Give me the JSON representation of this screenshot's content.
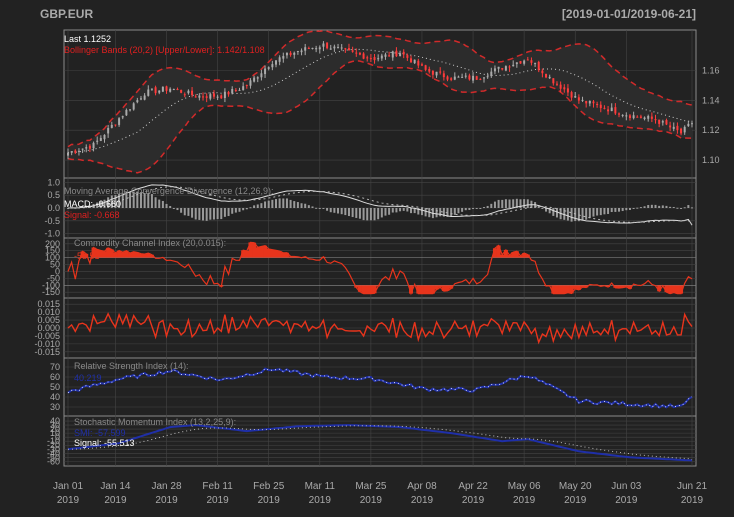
{
  "header": {
    "symbol": "GBP.EUR",
    "range": "[2019-01-01/2019-06-21]"
  },
  "colors": {
    "bg": "#222222",
    "grid": "#444444",
    "frame": "#8a8a8a",
    "axis_text": "#aaaaaa",
    "up": "#aaaaaa",
    "down": "#ff3b3b",
    "bands": "#d12a2a",
    "mavg": "#cccccc",
    "macd_line": "#dddddd",
    "cci": "#e8341c",
    "roc": "#e8341c",
    "rsi": "#1f2fa8",
    "smi": "#1f2fa8",
    "signal": "#bbbbbb"
  },
  "x_labels": [
    {
      "day": 0,
      "line1": "Jan 01",
      "line2": "2019"
    },
    {
      "day": 13,
      "line1": "Jan 14",
      "line2": "2019"
    },
    {
      "day": 27,
      "line1": "Jan 28",
      "line2": "2019"
    },
    {
      "day": 41,
      "line1": "Feb 11",
      "line2": "2019"
    },
    {
      "day": 55,
      "line1": "Feb 25",
      "line2": "2019"
    },
    {
      "day": 69,
      "line1": "Mar 11",
      "line2": "2019"
    },
    {
      "day": 83,
      "line1": "Mar 25",
      "line2": "2019"
    },
    {
      "day": 97,
      "line1": "Apr 08",
      "line2": "2019"
    },
    {
      "day": 111,
      "line1": "Apr 22",
      "line2": "2019"
    },
    {
      "day": 125,
      "line1": "May 06",
      "line2": "2019"
    },
    {
      "day": 139,
      "line1": "May 20",
      "line2": "2019"
    },
    {
      "day": 153,
      "line1": "Jun 03",
      "line2": "2019"
    },
    {
      "day": 171,
      "line1": "Jun 21",
      "line2": "2019"
    }
  ],
  "panels": {
    "price": {
      "legend_last": "Last 1.1252",
      "legend_bbands": "Bollinger Bands (20,2) [Upper/Lower]: 1.142/1.108",
      "yticks": [
        "1.10",
        "1.12",
        "1.14",
        "1.16"
      ],
      "ylim": [
        1.09,
        1.185
      ]
    },
    "macd": {
      "title": "Moving Average Convergence Divergence (12,26,9):",
      "label": "MACD: -0.660",
      "signal_label": "Signal: -0.668",
      "yticks": [
        "1.0",
        "0.5",
        "0.0",
        "-0.5",
        "-1.0"
      ],
      "ylim": [
        -1.05,
        1.05
      ]
    },
    "cci": {
      "title": "Commodity Channel Index (20,0.015):",
      "value_label": "-53.51",
      "yticks": [
        "200",
        "150",
        "100",
        "50",
        "0",
        "-50",
        "-100",
        "-150"
      ],
      "ylim": [
        -170,
        220
      ]
    },
    "roc": {
      "yticks": [
        "0.015",
        "0.010",
        "0.005",
        "0.000",
        "-0.005",
        "-0.010",
        "-0.015"
      ],
      "ylim": [
        -0.017,
        0.017
      ]
    },
    "rsi": {
      "title": "Relative Strength Index (14):",
      "value_label": "40.219",
      "yticks": [
        "70",
        "60",
        "50",
        "40",
        "30"
      ],
      "ylim": [
        24,
        76
      ]
    },
    "smi": {
      "title": "Stochastic Momentum Index (13,2,25,9):",
      "value_label": "SMI: -57.599",
      "signal_label": "Signal: -55.513",
      "yticks": [
        "40",
        "30",
        "20",
        "10",
        "0",
        "-10",
        "-20",
        "-30",
        "-40",
        "-50",
        "-60"
      ],
      "ylim": [
        -64,
        45
      ]
    }
  },
  "chart_data": {
    "type": "line",
    "title": "GBP.EUR",
    "date_range": "[2019-01-01/2019-06-21]",
    "price_anchors": [
      [
        "2019-01-01",
        1.105
      ],
      [
        "2019-01-08",
        1.11
      ],
      [
        "2019-01-15",
        1.128
      ],
      [
        "2019-01-22",
        1.145
      ],
      [
        "2019-01-29",
        1.148
      ],
      [
        "2019-02-05",
        1.143
      ],
      [
        "2019-02-12",
        1.143
      ],
      [
        "2019-02-19",
        1.15
      ],
      [
        "2019-02-26",
        1.166
      ],
      [
        "2019-03-05",
        1.173
      ],
      [
        "2019-03-12",
        1.177
      ],
      [
        "2019-03-19",
        1.172
      ],
      [
        "2019-03-26",
        1.168
      ],
      [
        "2019-04-02",
        1.172
      ],
      [
        "2019-04-09",
        1.16
      ],
      [
        "2019-04-16",
        1.155
      ],
      [
        "2019-04-23",
        1.155
      ],
      [
        "2019-04-30",
        1.162
      ],
      [
        "2019-05-07",
        1.168
      ],
      [
        "2019-05-14",
        1.153
      ],
      [
        "2019-05-21",
        1.14
      ],
      [
        "2019-05-28",
        1.135
      ],
      [
        "2019-06-04",
        1.13
      ],
      [
        "2019-06-11",
        1.127
      ],
      [
        "2019-06-18",
        1.118
      ],
      [
        "2019-06-21",
        1.125
      ]
    ],
    "rsi_anchors": [
      [
        "2019-01-01",
        45
      ],
      [
        "2019-01-15",
        58
      ],
      [
        "2019-01-29",
        66
      ],
      [
        "2019-02-12",
        57
      ],
      [
        "2019-02-26",
        68
      ],
      [
        "2019-03-12",
        60
      ],
      [
        "2019-03-26",
        58
      ],
      [
        "2019-04-09",
        48
      ],
      [
        "2019-04-23",
        47
      ],
      [
        "2019-05-07",
        62
      ],
      [
        "2019-05-21",
        36
      ],
      [
        "2019-06-04",
        33
      ],
      [
        "2019-06-18",
        30
      ],
      [
        "2019-06-21",
        40
      ]
    ],
    "smi_anchors": [
      [
        "2019-01-01",
        -30
      ],
      [
        "2019-01-15",
        -15
      ],
      [
        "2019-01-29",
        25
      ],
      [
        "2019-02-05",
        30
      ],
      [
        "2019-02-19",
        15
      ],
      [
        "2019-03-05",
        27
      ],
      [
        "2019-03-19",
        30
      ],
      [
        "2019-04-02",
        25
      ],
      [
        "2019-04-16",
        10
      ],
      [
        "2019-04-30",
        -10
      ],
      [
        "2019-05-07",
        -5
      ],
      [
        "2019-05-21",
        -35
      ],
      [
        "2019-06-04",
        -50
      ],
      [
        "2019-06-21",
        -57.6
      ]
    ],
    "last": 1.1252,
    "upper_band": 1.142,
    "lower_band": 1.108,
    "macd": -0.66,
    "macd_signal": -0.668,
    "cci": -53.51,
    "rsi": 40.219,
    "smi": -57.599,
    "smi_signal": -55.513
  }
}
